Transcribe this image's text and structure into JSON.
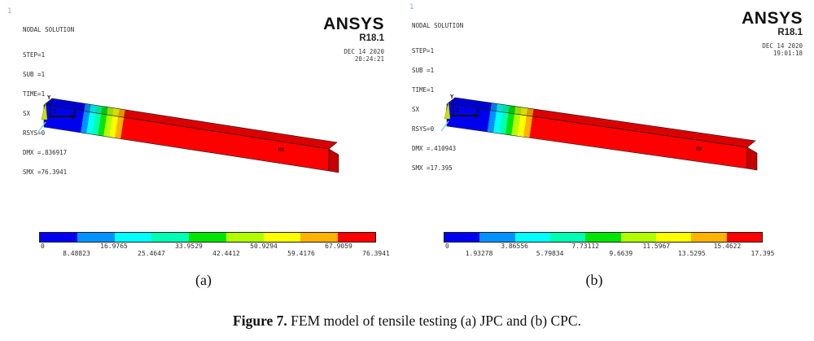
{
  "panels": [
    {
      "window_number": "1",
      "solution_title": "NODAL SOLUTION",
      "info_lines": [
        "STEP=1",
        "SUB =1",
        "TIME=1",
        "SX       (AVG)",
        "RSYS=0",
        "DMX =.836917",
        "SMX =76.3941"
      ],
      "logo": {
        "brand": "ANSYS",
        "release": "R18.1",
        "date": "DEC 14 2020",
        "time": "20:24:21"
      },
      "model": {
        "mx_label": "MX",
        "axis_x": "X",
        "axis_y": "Y",
        "axis_z": "Z"
      },
      "colorbar": {
        "top_labels": [
          "0",
          "16.9765",
          "33.9529",
          "50.9294",
          "67.9059"
        ],
        "bottom_labels": [
          "8.48823",
          "25.4647",
          "42.4412",
          "59.4176",
          "76.3941"
        ]
      },
      "panel_label": "(a)"
    },
    {
      "window_number": "1",
      "solution_title": "NODAL SOLUTION",
      "info_lines": [
        "STEP=1",
        "SUB =1",
        "TIME=1",
        "SX       (AVG)",
        "RSYS=0",
        "DMX =.410943",
        "SMX =17.395"
      ],
      "logo": {
        "brand": "ANSYS",
        "release": "R18.1",
        "date": "DEC 14 2020",
        "time": "19:01:18"
      },
      "model": {
        "mx_label": "MX",
        "axis_x": "X",
        "axis_y": "Y",
        "axis_z": "Z"
      },
      "colorbar": {
        "top_labels": [
          "0",
          "3.86556",
          "7.73112",
          "11.5967",
          "15.4622"
        ],
        "bottom_labels": [
          "1.93278",
          "5.79834",
          "9.6639",
          "13.5295",
          "17.395"
        ]
      },
      "panel_label": "(b)"
    }
  ],
  "colors": {
    "contour_bands": [
      "#0000f0",
      "#0093ff",
      "#00ffff",
      "#00ffb2",
      "#00e506",
      "#b2ff00",
      "#ffff00",
      "#ffb200",
      "#ff0000"
    ],
    "window_number": "#8fa6ff",
    "cap_red": "#c40000"
  },
  "caption": {
    "label": "Figure 7.",
    "text": " FEM model of tensile testing (a) JPC and (b) CPC."
  }
}
